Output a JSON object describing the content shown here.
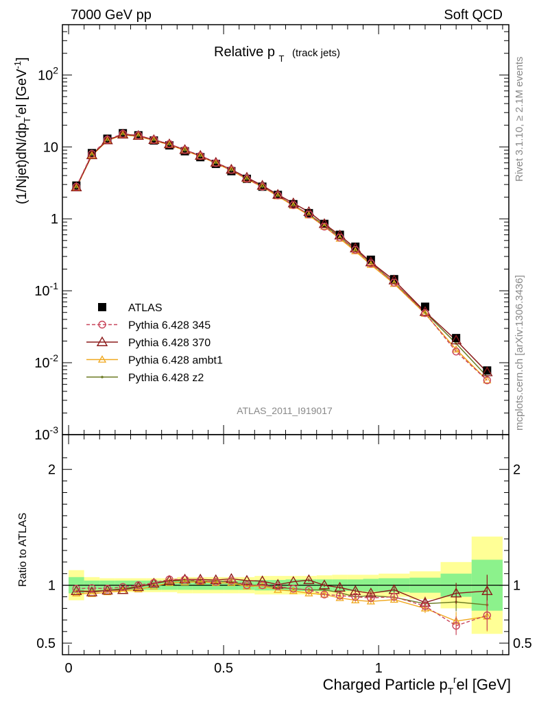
{
  "header": {
    "left": "7000 GeV pp",
    "right": "Soft QCD"
  },
  "side_text": {
    "rivet": "Rivet 3.1.10, ≥ 2.1M events",
    "source": "mcplots.cern.ch [arXiv:1306.3436]"
  },
  "analysis_label": "ATLAS_2011_I919017",
  "colors": {
    "atlas": "#000000",
    "p345": "#c8445a",
    "p370": "#8b1a1a",
    "ambt1": "#f0a81e",
    "z2": "#6b7a22",
    "band_inner": "#8cf28c",
    "band_outer": "#ffff96"
  },
  "chart_data": [
    {
      "type": "line",
      "title_main": "Relative p",
      "title_sub": "T",
      "title_extra": "(track jets)",
      "ylabel": "(1/Njet)dN/dp_T^rel [GeV^-1]",
      "yscale": "log",
      "ylim": [
        0.001,
        500
      ],
      "xlim": [
        -0.02,
        1.42
      ],
      "x": [
        0.025,
        0.075,
        0.125,
        0.175,
        0.225,
        0.275,
        0.325,
        0.375,
        0.425,
        0.475,
        0.525,
        0.575,
        0.625,
        0.675,
        0.725,
        0.775,
        0.825,
        0.875,
        0.925,
        0.975,
        1.05,
        1.15,
        1.25,
        1.35
      ],
      "yticks": [
        "10^-3",
        "10^-2",
        "10^-1",
        "1",
        "10",
        "10^2"
      ],
      "series": [
        {
          "name": "ATLAS",
          "key": "atlas",
          "marker": "square",
          "values": [
            2.9,
            8.2,
            13.0,
            15.5,
            14.5,
            12.3,
            10.5,
            8.7,
            7.2,
            5.8,
            4.6,
            3.6,
            2.8,
            2.15,
            1.6,
            1.2,
            0.85,
            0.6,
            0.41,
            0.27,
            0.145,
            0.06,
            0.022,
            0.0078
          ]
        },
        {
          "name": "Pythia 6.428 345",
          "key": "p345",
          "marker": "circle",
          "dash": true,
          "values": [
            2.8,
            8.0,
            12.6,
            15.2,
            14.5,
            12.6,
            11.0,
            9.1,
            7.5,
            6.0,
            4.8,
            3.6,
            2.8,
            2.12,
            1.55,
            1.15,
            0.78,
            0.55,
            0.37,
            0.24,
            0.13,
            0.049,
            0.0143,
            0.0057
          ]
        },
        {
          "name": "Pythia 6.428 370",
          "key": "p370",
          "marker": "triangle",
          "values": [
            2.75,
            7.7,
            12.4,
            14.9,
            14.3,
            12.5,
            10.9,
            9.1,
            7.55,
            6.05,
            4.85,
            3.75,
            2.9,
            2.17,
            1.65,
            1.25,
            0.85,
            0.59,
            0.39,
            0.25,
            0.14,
            0.051,
            0.0205,
            0.0074
          ]
        },
        {
          "name": "Pythia 6.428 ambt1",
          "key": "ambt1",
          "marker": "triangle-small",
          "values": [
            2.7,
            7.6,
            12.2,
            14.7,
            14.0,
            12.3,
            10.7,
            8.9,
            7.4,
            5.9,
            4.7,
            3.55,
            2.78,
            2.06,
            1.52,
            1.12,
            0.78,
            0.53,
            0.355,
            0.23,
            0.125,
            0.048,
            0.0153,
            0.0057
          ]
        },
        {
          "name": "Pythia 6.428 z2",
          "key": "z2",
          "marker": "dot",
          "values": [
            2.75,
            7.8,
            12.4,
            15.0,
            14.4,
            12.5,
            10.8,
            9.0,
            7.45,
            6.0,
            4.75,
            3.6,
            2.8,
            2.1,
            1.55,
            1.15,
            0.82,
            0.56,
            0.37,
            0.245,
            0.13,
            0.05,
            0.0185,
            0.0064
          ]
        }
      ]
    },
    {
      "type": "line",
      "ylabel": "Ratio to ATLAS",
      "xlabel": "Charged Particle p_T^rel [GeV]",
      "ylim": [
        0.4,
        2.3
      ],
      "xlim": [
        -0.02,
        1.42
      ],
      "x": [
        0.025,
        0.075,
        0.125,
        0.175,
        0.225,
        0.275,
        0.325,
        0.375,
        0.425,
        0.475,
        0.525,
        0.575,
        0.625,
        0.675,
        0.725,
        0.775,
        0.825,
        0.875,
        0.925,
        0.975,
        1.05,
        1.15,
        1.25,
        1.35
      ],
      "xticks": [
        "0",
        "0.5",
        "1"
      ],
      "yticks": [
        "0.5",
        "1",
        "2"
      ],
      "bands": {
        "edges": [
          0,
          0.05,
          0.1,
          0.15,
          0.2,
          0.25,
          0.3,
          0.35,
          0.4,
          0.45,
          0.5,
          0.55,
          0.6,
          0.65,
          0.7,
          0.75,
          0.8,
          0.85,
          0.9,
          0.95,
          1.0,
          1.1,
          1.2,
          1.3,
          1.4
        ],
        "inner": [
          0.07,
          0.04,
          0.04,
          0.04,
          0.04,
          0.04,
          0.04,
          0.04,
          0.04,
          0.04,
          0.04,
          0.04,
          0.045,
          0.045,
          0.05,
          0.05,
          0.05,
          0.05,
          0.05,
          0.055,
          0.06,
          0.065,
          0.1,
          0.22
        ],
        "outer": [
          0.13,
          0.07,
          0.06,
          0.06,
          0.06,
          0.06,
          0.06,
          0.07,
          0.07,
          0.07,
          0.07,
          0.07,
          0.08,
          0.08,
          0.08,
          0.08,
          0.085,
          0.09,
          0.09,
          0.09,
          0.1,
          0.12,
          0.2,
          0.42
        ]
      },
      "series": [
        {
          "name": "Pythia 6.428 345",
          "key": "p345",
          "values": [
            0.97,
            0.975,
            0.97,
            0.985,
            1.0,
            1.02,
            1.05,
            1.05,
            1.04,
            1.03,
            1.04,
            1.0,
            1.0,
            0.99,
            0.97,
            0.96,
            0.92,
            0.91,
            0.9,
            0.89,
            0.9,
            0.82,
            0.65,
            0.74
          ],
          "errors": [
            0.01,
            0.01,
            0.01,
            0.01,
            0.01,
            0.01,
            0.01,
            0.01,
            0.01,
            0.01,
            0.01,
            0.01,
            0.01,
            0.01,
            0.01,
            0.01,
            0.015,
            0.015,
            0.015,
            0.02,
            0.025,
            0.04,
            0.08,
            0.13
          ]
        },
        {
          "name": "Pythia 6.428 370",
          "key": "p370",
          "values": [
            0.95,
            0.94,
            0.955,
            0.96,
            0.985,
            1.015,
            1.04,
            1.05,
            1.05,
            1.045,
            1.055,
            1.04,
            1.035,
            1.005,
            1.03,
            1.045,
            1.0,
            0.98,
            0.95,
            0.93,
            0.96,
            0.85,
            0.93,
            0.95
          ],
          "errors": [
            0.01,
            0.01,
            0.01,
            0.01,
            0.01,
            0.01,
            0.01,
            0.01,
            0.01,
            0.01,
            0.01,
            0.01,
            0.01,
            0.01,
            0.01,
            0.015,
            0.015,
            0.015,
            0.02,
            0.02,
            0.025,
            0.05,
            0.09,
            0.14
          ]
        },
        {
          "name": "Pythia 6.428 ambt1",
          "key": "ambt1",
          "values": [
            0.93,
            0.925,
            0.94,
            0.95,
            0.965,
            0.99,
            1.02,
            1.025,
            1.03,
            1.02,
            1.02,
            0.99,
            0.995,
            0.96,
            0.95,
            0.93,
            0.92,
            0.89,
            0.87,
            0.86,
            0.875,
            0.8,
            0.69,
            0.73
          ],
          "errors": [
            0.01,
            0.01,
            0.01,
            0.01,
            0.01,
            0.01,
            0.01,
            0.01,
            0.01,
            0.01,
            0.01,
            0.01,
            0.01,
            0.01,
            0.01,
            0.015,
            0.015,
            0.015,
            0.02,
            0.02,
            0.025,
            0.04,
            0.08,
            0.13
          ]
        },
        {
          "name": "Pythia 6.428 z2",
          "key": "z2",
          "values": [
            0.95,
            0.95,
            0.955,
            0.97,
            0.99,
            1.015,
            1.035,
            1.04,
            1.035,
            1.035,
            1.03,
            1.0,
            1.0,
            0.98,
            0.97,
            0.96,
            0.96,
            0.935,
            0.9,
            0.91,
            0.895,
            0.84,
            0.855,
            0.83
          ],
          "errors": [
            0.01,
            0.01,
            0.01,
            0.01,
            0.01,
            0.01,
            0.01,
            0.01,
            0.01,
            0.01,
            0.01,
            0.01,
            0.01,
            0.01,
            0.01,
            0.015,
            0.015,
            0.015,
            0.02,
            0.02,
            0.025,
            0.04,
            0.08,
            0.13
          ]
        }
      ]
    }
  ]
}
